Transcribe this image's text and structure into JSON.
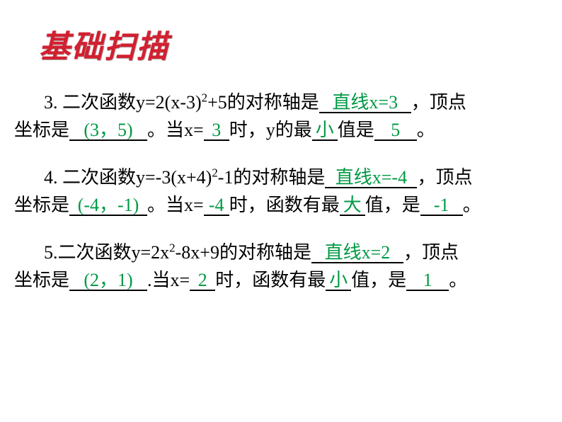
{
  "title": "基础扫描",
  "colors": {
    "title": "#d22030",
    "answer": "#009944",
    "text": "#000000",
    "background": "#ffffff"
  },
  "typography": {
    "title_fontsize": 44,
    "body_fontsize": 26,
    "title_family": "STXingkai/KaiTi",
    "body_family": "SimSun"
  },
  "q3": {
    "number": "3.",
    "prefix": "二次函数y=2(x-3)",
    "exp": "2",
    "mid1": "+5的对称轴是",
    "axis": "直线x=3",
    "mid2": "，顶点坐标是",
    "vertex": "(3，5)",
    "mid3": "。当x=",
    "xval": "3",
    "mid4": "时，y的最",
    "minmax": "小",
    "mid5": "值是",
    "extremum": "5",
    "end": "。"
  },
  "q4": {
    "number": "4.",
    "prefix": "二次函数y=-3(x+4)",
    "exp": "2",
    "mid1": "-1的对称轴是",
    "axis": "直线x=-4",
    "mid2": "，顶点坐标是",
    "vertex": "(-4，-1)",
    "mid3": "。当x=",
    "xval": "-4",
    "mid4": "时，函数有最",
    "minmax": "大",
    "mid5": "值，是",
    "extremum": "-1",
    "end": "。"
  },
  "q5": {
    "number": "5.",
    "prefix": "二次函数y=2x",
    "exp": "2",
    "mid1": "-8x+9的对称轴是",
    "axis": "直线x=2",
    "mid2": "，顶点坐标是",
    "vertex": "(2，1)",
    "mid3": ".当x=",
    "xval": "2",
    "mid4": "时，函数有最",
    "minmax": "小",
    "mid5": "值，是",
    "extremum": "1",
    "end": "。"
  }
}
